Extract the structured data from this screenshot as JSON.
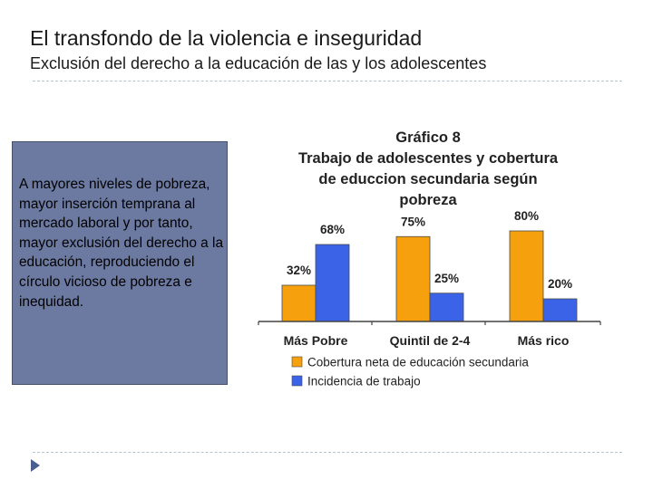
{
  "slide": {
    "title": "El transfondo de la violencia e inseguridad",
    "subtitle": "Exclusión del derecho a la educación de las y los adolescentes",
    "side_text": "A mayores niveles de pobreza, mayor inserción temprana al mercado laboral y por tanto, mayor exclusión del derecho a la educación, reproduciendo el círculo vicioso de pobreza e inequidad."
  },
  "colors": {
    "orange": "#f5a00c",
    "blue": "#3a63e8",
    "box": "#6c7aa2"
  },
  "chart_data": {
    "type": "bar",
    "title_lines": [
      "Gráfico 8",
      "Trabajo de adolescentes y cobertura",
      "de educcion secundaria según",
      "pobreza"
    ],
    "categories": [
      "Más Pobre",
      "Quintil de 2-4",
      "Más rico"
    ],
    "series": [
      {
        "name": "Cobertura neta de educación secundaria",
        "values": [
          32,
          75,
          80
        ],
        "labels": [
          "32%",
          "75%",
          "80%"
        ]
      },
      {
        "name": "Incidencia de trabajo",
        "values": [
          68,
          25,
          20
        ],
        "labels": [
          "68%",
          "25%",
          "20%"
        ]
      }
    ],
    "ylim": [
      0,
      100
    ],
    "legend": "bottom",
    "grid": false
  }
}
